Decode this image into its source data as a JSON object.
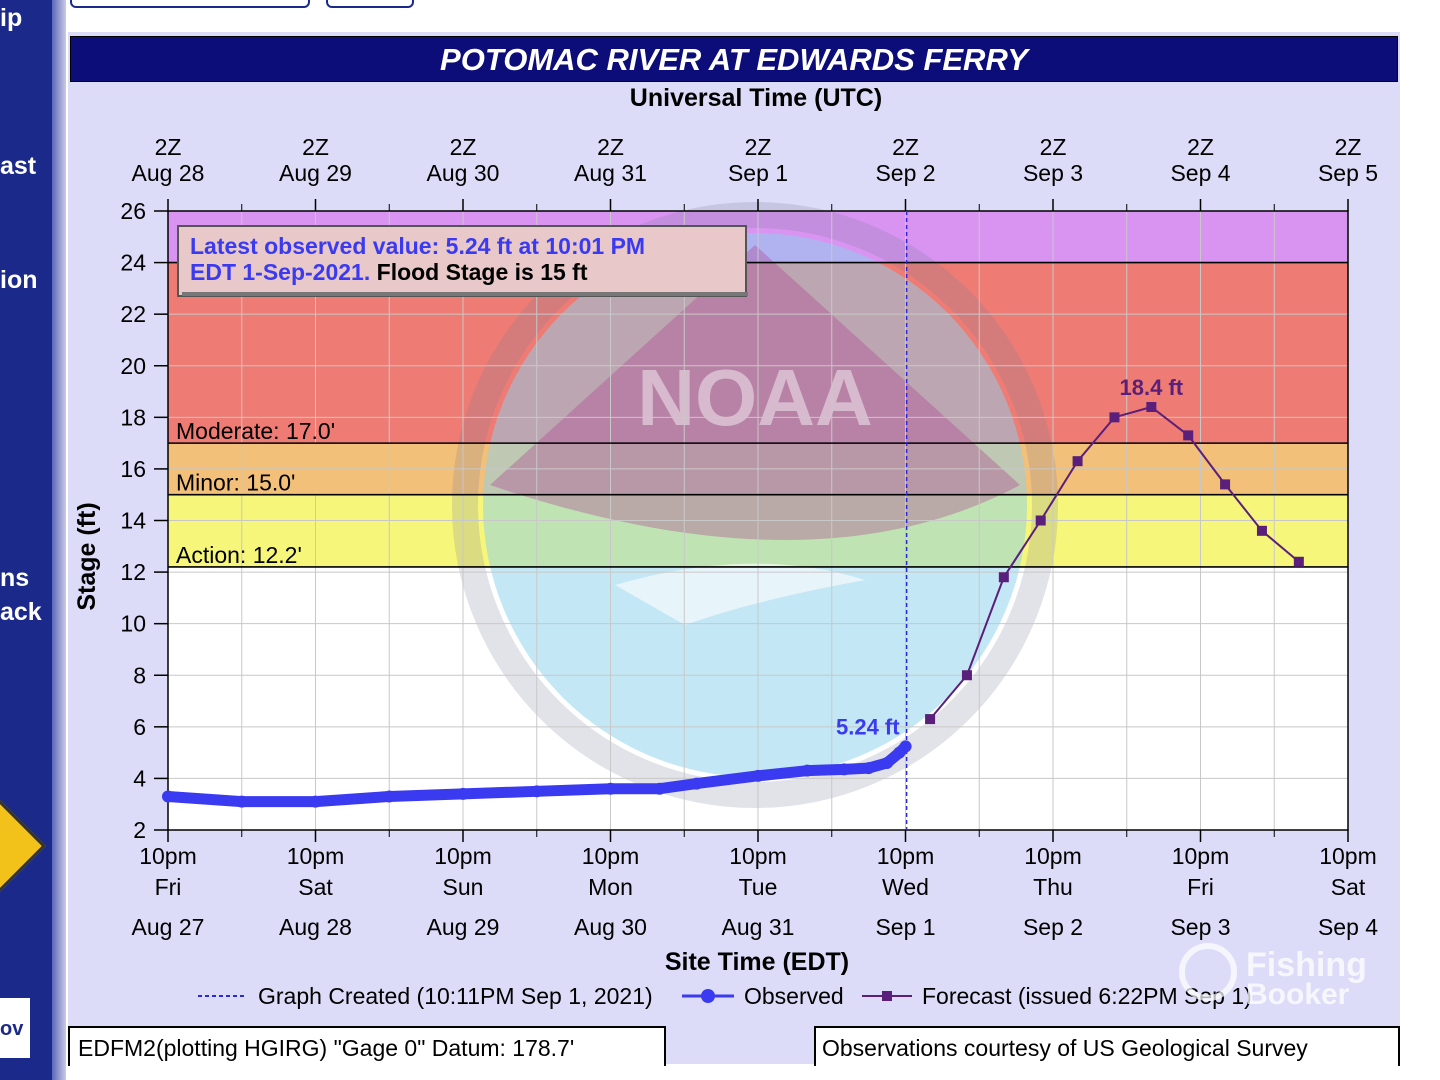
{
  "sidebar": {
    "items": [
      "ip",
      "ast",
      "ion",
      "ns",
      "ack"
    ],
    "logo_text": "ov"
  },
  "chart_data": {
    "type": "line",
    "title": "POTOMAC RIVER AT EDWARDS FERRY",
    "top_axis_title": "Universal Time (UTC)",
    "top_tick_labels": [
      [
        "2Z",
        "Aug 28"
      ],
      [
        "2Z",
        "Aug 29"
      ],
      [
        "2Z",
        "Aug 30"
      ],
      [
        "2Z",
        "Aug 31"
      ],
      [
        "2Z",
        "Sep  1"
      ],
      [
        "2Z",
        "Sep  2"
      ],
      [
        "2Z",
        "Sep  3"
      ],
      [
        "2Z",
        "Sep  4"
      ],
      [
        "2Z",
        "Sep  5"
      ]
    ],
    "bottom_tick_labels": [
      [
        "10pm",
        "Fri",
        "Aug 27"
      ],
      [
        "10pm",
        "Sat",
        "Aug 28"
      ],
      [
        "10pm",
        "Sun",
        "Aug 29"
      ],
      [
        "10pm",
        "Mon",
        "Aug 30"
      ],
      [
        "10pm",
        "Tue",
        "Aug 31"
      ],
      [
        "10pm",
        "Wed",
        "Sep 1"
      ],
      [
        "10pm",
        "Thu",
        "Sep 2"
      ],
      [
        "10pm",
        "Fri",
        "Sep 3"
      ],
      [
        "10pm",
        "Sat",
        "Sep 4"
      ]
    ],
    "xlabel": "Site Time (EDT)",
    "ylabel": "Stage (ft)",
    "ylim": [
      2,
      26
    ],
    "yticks": [
      2,
      4,
      6,
      8,
      10,
      12,
      14,
      16,
      18,
      20,
      22,
      24,
      26
    ],
    "xlim": [
      "2021-08-27T22:00",
      "2021-09-04T22:00"
    ],
    "grid": true,
    "stage_bands": [
      {
        "from": 24,
        "to": 26,
        "color": "#d994f2"
      },
      {
        "from": 17,
        "to": 24,
        "color": "#ee7c74"
      },
      {
        "from": 15,
        "to": 17,
        "color": "#f2c078"
      },
      {
        "from": 12.2,
        "to": 15,
        "color": "#f6f67a"
      }
    ],
    "threshold_lines": [
      {
        "label": "Moderate: 17.0'",
        "value": 17.0
      },
      {
        "label": "Minor: 15.0'",
        "value": 15.0
      },
      {
        "label": "Action: 12.2'",
        "value": 12.2
      },
      {
        "label": "",
        "value": 24.0
      }
    ],
    "info_box": {
      "line1": "Latest observed value: 5.24 ft at 10:01 PM",
      "line2_blue": "EDT 1-Sep-2021.",
      "line2_black": "Flood Stage is 15 ft"
    },
    "graph_created_time": "2021-09-01T22:11",
    "series": [
      {
        "name": "Observed",
        "color": "#3a3af0",
        "x": [
          "2021-08-27T22:00",
          "2021-08-28T10:00",
          "2021-08-28T22:00",
          "2021-08-29T10:00",
          "2021-08-29T22:00",
          "2021-08-30T10:00",
          "2021-08-30T22:00",
          "2021-08-31T06:00",
          "2021-08-31T12:00",
          "2021-08-31T22:00",
          "2021-09-01T06:00",
          "2021-09-01T12:00",
          "2021-09-01T16:00",
          "2021-09-01T19:00",
          "2021-09-01T21:00",
          "2021-09-01T22:01"
        ],
        "values": [
          3.3,
          3.1,
          3.1,
          3.3,
          3.4,
          3.5,
          3.6,
          3.6,
          3.8,
          4.1,
          4.3,
          4.35,
          4.4,
          4.6,
          5.0,
          5.24
        ]
      },
      {
        "name": "Forecast (issued 6:22PM Sep 1)",
        "color": "#5a1f7a",
        "x": [
          "2021-09-02T02:00",
          "2021-09-02T08:00",
          "2021-09-02T14:00",
          "2021-09-02T20:00",
          "2021-09-03T02:00",
          "2021-09-03T08:00",
          "2021-09-03T14:00",
          "2021-09-03T20:00",
          "2021-09-04T02:00",
          "2021-09-04T08:00",
          "2021-09-04T14:00",
          "2021-09-04T20:00"
        ],
        "values": [
          6.3,
          8.0,
          11.8,
          14.0,
          16.3,
          18.0,
          18.4,
          17.3,
          15.4,
          13.6,
          12.4,
          null
        ]
      }
    ],
    "annotations": [
      {
        "text": "5.24 ft",
        "x": "2021-09-01T22:01",
        "y": 5.24,
        "color": "#3a3af0"
      },
      {
        "text": "18.4 ft",
        "x": "2021-09-03T14:00",
        "y": 18.4,
        "color": "#5a1f7a"
      }
    ],
    "legend": {
      "placement": "bottom",
      "graph_created": "Graph Created (10:11PM Sep 1, 2021)",
      "observed": "Observed",
      "forecast": "Forecast (issued 6:22PM Sep 1)"
    },
    "watermark": "NOAA",
    "overlay_watermark": "Fishing Booker"
  },
  "footer": {
    "left": "EDFM2(plotting HGIRG) \"Gage 0\" Datum: 178.7'",
    "right": "Observations courtesy of US Geological Survey"
  }
}
